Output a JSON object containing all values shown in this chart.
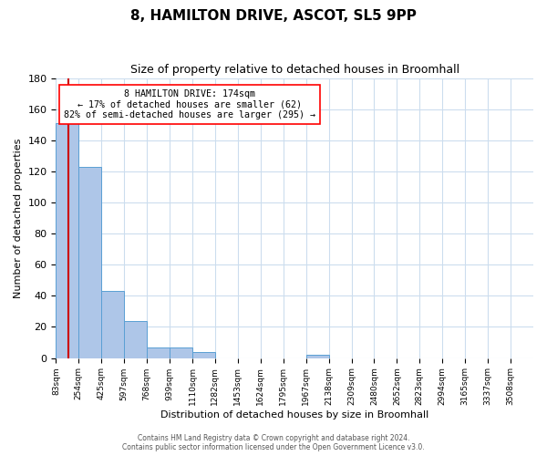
{
  "title": "8, HAMILTON DRIVE, ASCOT, SL5 9PP",
  "subtitle": "Size of property relative to detached houses in Broomhall",
  "xlabel": "Distribution of detached houses by size in Broomhall",
  "ylabel": "Number of detached properties",
  "bin_labels": [
    "83sqm",
    "254sqm",
    "425sqm",
    "597sqm",
    "768sqm",
    "939sqm",
    "1110sqm",
    "1282sqm",
    "1453sqm",
    "1624sqm",
    "1795sqm",
    "1967sqm",
    "2138sqm",
    "2309sqm",
    "2480sqm",
    "2652sqm",
    "2823sqm",
    "2994sqm",
    "3165sqm",
    "3337sqm",
    "3508sqm"
  ],
  "bar_values": [
    151,
    123,
    43,
    24,
    7,
    7,
    4,
    0,
    0,
    0,
    0,
    2,
    0,
    0,
    0,
    0,
    0,
    0,
    0,
    0,
    0
  ],
  "bar_color": "#aec6e8",
  "bar_edge_color": "#5a9fd4",
  "ylim": [
    0,
    180
  ],
  "yticks": [
    0,
    20,
    40,
    60,
    80,
    100,
    120,
    140,
    160,
    180
  ],
  "property_value": 174,
  "bin_edges_sqm": [
    83,
    254,
    425,
    597,
    768,
    939,
    1110,
    1282,
    1453,
    1624,
    1795,
    1967,
    2138,
    2309,
    2480,
    2652,
    2823,
    2994,
    3165,
    3337,
    3508
  ],
  "annotation_lines": [
    "8 HAMILTON DRIVE: 174sqm",
    "← 17% of detached houses are smaller (62)",
    "82% of semi-detached houses are larger (295) →"
  ],
  "red_line_color": "#cc0000",
  "footer_line1": "Contains HM Land Registry data © Crown copyright and database right 2024.",
  "footer_line2": "Contains public sector information licensed under the Open Government Licence v3.0.",
  "background_color": "#ffffff",
  "grid_color": "#ccddee"
}
